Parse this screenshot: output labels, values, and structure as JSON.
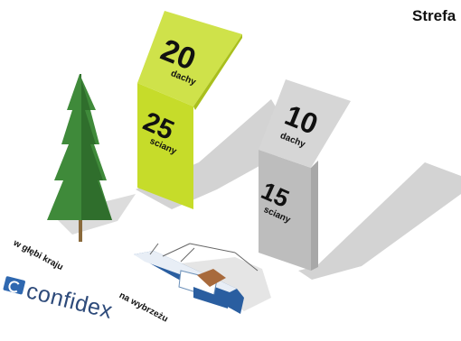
{
  "heading": "Strefa",
  "sign_green": {
    "roof_value": "20",
    "roof_label": "dachy",
    "wall_value": "25",
    "wall_label": "sciany",
    "color": "#c6dc2a"
  },
  "sign_gray": {
    "roof_value": "10",
    "roof_label": "dachy",
    "wall_value": "15",
    "wall_label": "sciany",
    "color": "#bdbdbd"
  },
  "labels": {
    "inland": "w głębi kraju",
    "coast": "na wybrzeżu"
  },
  "logo": {
    "text": "confidex",
    "color": "#2f68b0"
  },
  "icons": [
    "tree-icon",
    "boat-icon"
  ]
}
